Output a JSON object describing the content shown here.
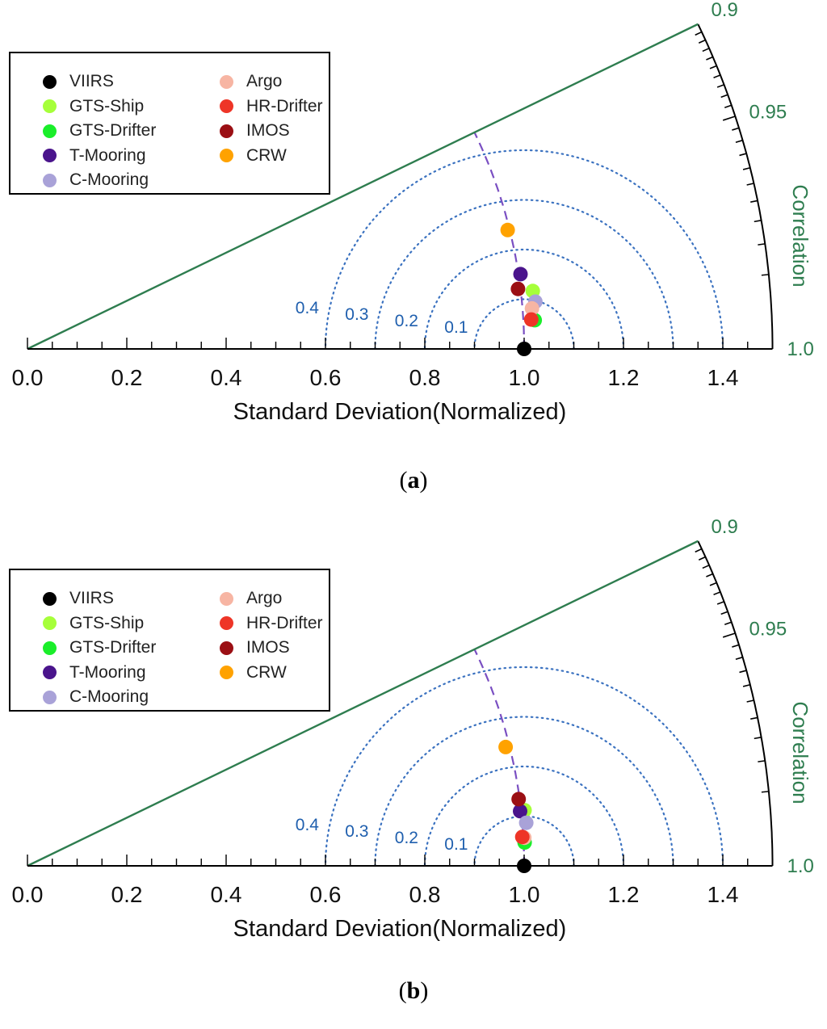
{
  "chart_data": [
    {
      "panel_label": "a",
      "type": "taylor-diagram",
      "xlabel": "Standard Deviation(Normalized)",
      "corr_label": "Correlation",
      "x_range": [
        0.0,
        1.5
      ],
      "x_ticks": [
        "0.0",
        "0.2",
        "0.4",
        "0.6",
        "0.8",
        "1.0",
        "1.2",
        "1.4"
      ],
      "corr_range": [
        0.9,
        1.0
      ],
      "corr_ticks": [
        {
          "value": 0.9,
          "label": "0.9"
        },
        {
          "value": 0.95,
          "label": "0.95"
        },
        {
          "value": 1.0,
          "label": "1.0"
        }
      ],
      "rmsd_contours": [
        {
          "value": 0.1,
          "label": "0.1"
        },
        {
          "value": 0.2,
          "label": "0.2"
        },
        {
          "value": 0.3,
          "label": "0.3"
        },
        {
          "value": 0.4,
          "label": "0.4"
        }
      ],
      "reference_std": 1.0,
      "series": [
        {
          "name": "VIIRS",
          "color": "#000000",
          "std": 1.0,
          "corr": 1.0
        },
        {
          "name": "GTS-Ship",
          "color": "#a6ff3a",
          "std": 1.024,
          "corr": 0.9935
        },
        {
          "name": "GTS-Drifter",
          "color": "#1aee2a",
          "std": 1.023,
          "corr": 0.9984
        },
        {
          "name": "T-Mooring",
          "color": "#4a148c",
          "std": 1.004,
          "corr": 0.9887
        },
        {
          "name": "C-Mooring",
          "color": "#a9a2d8",
          "std": 1.027,
          "corr": 0.9957
        },
        {
          "name": "Argo",
          "color": "#f7b5a3",
          "std": 1.019,
          "corr": 0.9968
        },
        {
          "name": "HR-Drifter",
          "color": "#ee3527",
          "std": 1.016,
          "corr": 0.9983
        },
        {
          "name": "IMOS",
          "color": "#9b0f14",
          "std": 0.995,
          "corr": 0.9926
        },
        {
          "name": "CRW",
          "color": "#ffa200",
          "std": 0.996,
          "corr": 0.9707
        }
      ],
      "legend": {
        "col1": [
          "VIIRS",
          "GTS-Ship",
          "GTS-Drifter",
          "T-Mooring",
          "C-Mooring"
        ],
        "col2": [
          "Argo",
          "HR-Drifter",
          "IMOS",
          "CRW"
        ]
      }
    },
    {
      "panel_label": "b",
      "type": "taylor-diagram",
      "xlabel": "Standard Deviation(Normalized)",
      "corr_label": "Correlation",
      "x_range": [
        0.0,
        1.5
      ],
      "x_ticks": [
        "0.0",
        "0.2",
        "0.4",
        "0.6",
        "0.8",
        "1.0",
        "1.2",
        "1.4"
      ],
      "corr_range": [
        0.9,
        1.0
      ],
      "corr_ticks": [
        {
          "value": 0.9,
          "label": "0.9"
        },
        {
          "value": 0.95,
          "label": "0.95"
        },
        {
          "value": 1.0,
          "label": "1.0"
        }
      ],
      "rmsd_contours": [
        {
          "value": 0.1,
          "label": "0.1"
        },
        {
          "value": 0.2,
          "label": "0.2"
        },
        {
          "value": 0.3,
          "label": "0.3"
        },
        {
          "value": 0.4,
          "label": "0.4"
        }
      ],
      "reference_std": 1.0,
      "series": [
        {
          "name": "VIIRS",
          "color": "#000000",
          "std": 1.0,
          "corr": 1.0
        },
        {
          "name": "GTS-Ship",
          "color": "#a6ff3a",
          "std": 1.007,
          "corr": 0.9938
        },
        {
          "name": "GTS-Drifter",
          "color": "#1aee2a",
          "std": 1.002,
          "corr": 0.9989
        },
        {
          "name": "T-Mooring",
          "color": "#4a148c",
          "std": 0.998,
          "corr": 0.9939
        },
        {
          "name": "C-Mooring",
          "color": "#a9a2d8",
          "std": 1.008,
          "corr": 0.9963
        },
        {
          "name": "Argo",
          "color": "#f7b5a3",
          "std": 1.002,
          "corr": 0.9984
        },
        {
          "name": "HR-Drifter",
          "color": "#ee3527",
          "std": 0.998,
          "corr": 0.9983
        },
        {
          "name": "IMOS",
          "color": "#9b0f14",
          "std": 0.998,
          "corr": 0.9909
        },
        {
          "name": "CRW",
          "color": "#ffa200",
          "std": 0.992,
          "corr": 0.9705
        }
      ],
      "legend": {
        "col1": [
          "VIIRS",
          "GTS-Ship",
          "GTS-Drifter",
          "T-Mooring",
          "C-Mooring"
        ],
        "col2": [
          "Argo",
          "HR-Drifter",
          "IMOS",
          "CRW"
        ]
      }
    }
  ]
}
